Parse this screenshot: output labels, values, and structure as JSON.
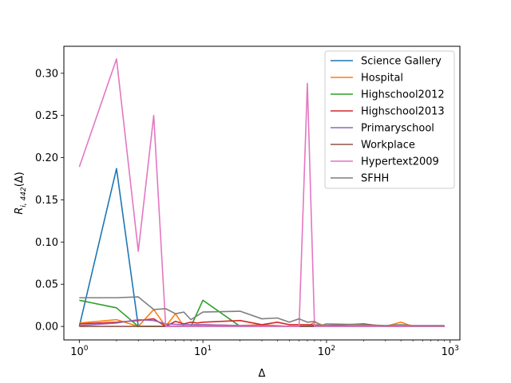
{
  "chart_data": {
    "type": "line",
    "xscale": "log",
    "xlim": [
      0.75,
      1200
    ],
    "ylim": [
      -0.016,
      0.332
    ],
    "xlabel": "Δ",
    "ylabel_main": "R",
    "ylabel_sub": "i, 442",
    "ylabel_arg": "(Δ)",
    "grid": false,
    "legend_position": "top-right",
    "x_tick_labels": [
      {
        "value": 1,
        "mantissa": "10",
        "exp": "0"
      },
      {
        "value": 10,
        "mantissa": "10",
        "exp": "1"
      },
      {
        "value": 100,
        "mantissa": "10",
        "exp": "2"
      },
      {
        "value": 1000,
        "mantissa": "10",
        "exp": "3"
      }
    ],
    "y_ticks": [
      0.0,
      0.05,
      0.1,
      0.15,
      0.2,
      0.25,
      0.3
    ],
    "y_tick_labels": [
      "0.00",
      "0.05",
      "0.10",
      "0.15",
      "0.20",
      "0.25",
      "0.30"
    ],
    "series": [
      {
        "name": "Science Gallery",
        "color": "#1f77b4",
        "x": [
          1,
          2,
          3,
          4,
          5,
          10,
          20,
          50,
          100,
          200,
          500,
          900
        ],
        "y": [
          0.0,
          0.187,
          0.0,
          0.0,
          0.0,
          0.0,
          0.0,
          0.0,
          0.0,
          0.0,
          0.0,
          0.0
        ]
      },
      {
        "name": "Hospital",
        "color": "#ff7f0e",
        "x": [
          1,
          2,
          3,
          4,
          5,
          6,
          7,
          8,
          10,
          20,
          30,
          50,
          70,
          80,
          100,
          200,
          300,
          400,
          500,
          600,
          900
        ],
        "y": [
          0.004,
          0.008,
          0.0,
          0.02,
          0.0,
          0.015,
          0.0,
          0.0,
          0.002,
          0.001,
          0.002,
          0.0,
          0.0,
          0.005,
          0.0,
          0.001,
          0.0,
          0.005,
          0.0,
          0.0,
          0.0
        ]
      },
      {
        "name": "Highschool2012",
        "color": "#2ca02c",
        "x": [
          1,
          2,
          3,
          4,
          5,
          6,
          7,
          8,
          10,
          20,
          30,
          50,
          100,
          200,
          500,
          900
        ],
        "y": [
          0.031,
          0.022,
          0.0,
          0.0,
          0.0,
          0.0,
          0.0,
          0.0,
          0.031,
          0.0,
          0.0,
          0.0,
          0.0,
          0.0,
          0.0,
          0.0
        ]
      },
      {
        "name": "Highschool2013",
        "color": "#d62728",
        "x": [
          1,
          2,
          3,
          4,
          5,
          6,
          7,
          8,
          9,
          10,
          20,
          30,
          40,
          50,
          70,
          100,
          200,
          300,
          500,
          900
        ],
        "y": [
          0.003,
          0.005,
          0.007,
          0.009,
          0.0,
          0.006,
          0.003,
          0.005,
          0.004,
          0.005,
          0.007,
          0.002,
          0.005,
          0.002,
          0.002,
          0.001,
          0.003,
          0.0,
          0.0,
          0.0
        ]
      },
      {
        "name": "Primaryschool",
        "color": "#9467bd",
        "x": [
          1,
          2,
          3,
          4,
          5,
          7,
          10,
          20,
          30,
          50,
          100,
          200,
          500,
          900
        ],
        "y": [
          0.001,
          0.004,
          0.008,
          0.007,
          0.003,
          0.002,
          0.002,
          0.001,
          0.001,
          0.0,
          0.001,
          0.0,
          0.0,
          0.0
        ]
      },
      {
        "name": "Workplace",
        "color": "#8c564b",
        "x": [
          1,
          2,
          3,
          5,
          10,
          20,
          50,
          100,
          200,
          500,
          900
        ],
        "y": [
          0.0,
          0.0,
          0.0,
          0.0,
          0.0,
          0.0,
          0.0,
          0.0,
          0.0,
          0.0,
          0.0
        ]
      },
      {
        "name": "Hypertext2009",
        "color": "#e377c2",
        "x": [
          1,
          2,
          3,
          4,
          5,
          10,
          20,
          60,
          70,
          80,
          100,
          200,
          500,
          900
        ],
        "y": [
          0.189,
          0.317,
          0.089,
          0.25,
          0.0,
          0.0,
          0.0,
          0.0,
          0.288,
          0.0,
          0.0,
          0.0,
          0.0,
          0.0
        ]
      },
      {
        "name": "SFHH",
        "color": "#7f7f7f",
        "x": [
          1,
          2,
          3,
          4,
          5,
          6,
          7,
          8,
          10,
          20,
          30,
          40,
          50,
          60,
          70,
          80,
          90,
          100,
          200,
          300,
          400,
          500,
          600,
          900
        ],
        "y": [
          0.034,
          0.034,
          0.035,
          0.02,
          0.021,
          0.015,
          0.017,
          0.008,
          0.017,
          0.018,
          0.009,
          0.01,
          0.005,
          0.009,
          0.005,
          0.006,
          0.001,
          0.003,
          0.002,
          0.001,
          0.002,
          0.001,
          0.001,
          0.001
        ]
      }
    ]
  }
}
